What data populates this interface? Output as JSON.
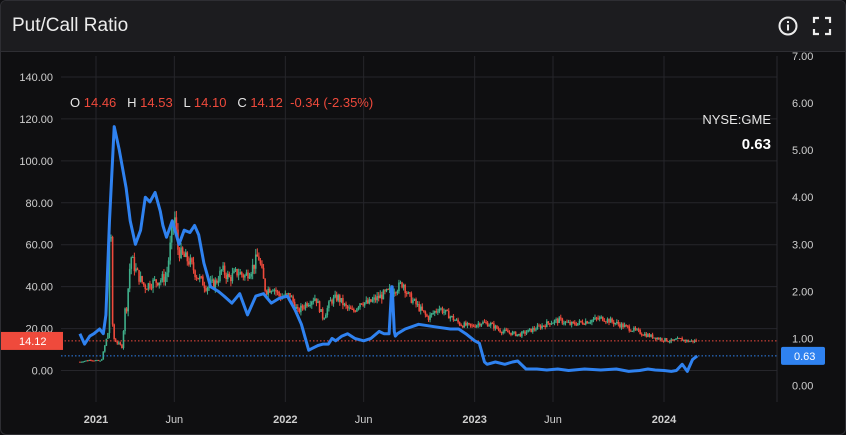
{
  "header": {
    "title": "Put/Call Ratio",
    "info_icon": "info-circle-icon",
    "expand_icon": "fullscreen-expand-icon"
  },
  "legend": {
    "o_label": "O",
    "o_value": "14.46",
    "h_label": "H",
    "h_value": "14.53",
    "l_label": "L",
    "l_value": "14.10",
    "c_label": "C",
    "c_value": "14.12",
    "change": "-0.34 (-2.35%)",
    "symbol": "NYSE:GME",
    "symbol_value": "0.63"
  },
  "colors": {
    "background": "#0f0f11",
    "grid": "#26262b",
    "up": "#3fae8a",
    "down": "#ef4a3c",
    "ratio_line": "#2f82f0",
    "price_label_bg": "#ef4a3c",
    "ratio_label_bg": "#2f82f0"
  },
  "chart_data": {
    "type": "line",
    "title": "Put/Call Ratio",
    "x_ticks": [
      "2021",
      "Jun",
      "2022",
      "Jun",
      "2023",
      "Jun",
      "2024"
    ],
    "x_tick_dates": [
      "2021-01-01",
      "2021-06-01",
      "2022-01-01",
      "2022-06-01",
      "2023-01-01",
      "2023-06-01",
      "2024-01-01"
    ],
    "left_axis": {
      "ticks": [
        "140.00",
        "120.00",
        "100.00",
        "80.00",
        "60.00",
        "40.00",
        "20.00",
        "0.00"
      ],
      "range": [
        -15,
        150
      ]
    },
    "right_axis": {
      "ticks": [
        "7.00",
        "6.00",
        "5.00",
        "4.00",
        "3.00",
        "2.00",
        "1.00",
        "0.00"
      ],
      "range": [
        -0.35,
        7
      ]
    },
    "price_last": "14.12",
    "ratio_last": "0.63",
    "grid": true,
    "series": [
      {
        "name": "NYSE:GME",
        "axis": "left",
        "kind": "candlestick",
        "dates": [
          "2020-12-01",
          "2020-12-21",
          "2021-01-11",
          "2021-01-25",
          "2021-01-28",
          "2021-02-02",
          "2021-02-05",
          "2021-02-12",
          "2021-02-22",
          "2021-02-24",
          "2021-03-01",
          "2021-03-09",
          "2021-03-15",
          "2021-03-24",
          "2021-04-05",
          "2021-04-19",
          "2021-05-03",
          "2021-05-17",
          "2021-06-01",
          "2021-06-08",
          "2021-06-15",
          "2021-06-30",
          "2021-07-15",
          "2021-08-02",
          "2021-08-20",
          "2021-09-01",
          "2021-09-15",
          "2021-10-01",
          "2021-10-15",
          "2021-11-01",
          "2021-11-10",
          "2021-11-24",
          "2021-12-08",
          "2021-12-22",
          "2022-01-10",
          "2022-01-25",
          "2022-02-10",
          "2022-02-28",
          "2022-03-15",
          "2022-03-29",
          "2022-04-12",
          "2022-04-28",
          "2022-05-12",
          "2022-05-26",
          "2022-06-09",
          "2022-06-23",
          "2022-07-08",
          "2022-07-22",
          "2022-08-08",
          "2022-08-16",
          "2022-08-25",
          "2022-09-12",
          "2022-10-03",
          "2022-10-24",
          "2022-11-14",
          "2022-12-05",
          "2022-12-27",
          "2023-01-13",
          "2023-02-01",
          "2023-02-20",
          "2023-03-10",
          "2023-03-28",
          "2023-04-17",
          "2023-05-08",
          "2023-05-26",
          "2023-06-14",
          "2023-07-05",
          "2023-07-26",
          "2023-08-14",
          "2023-09-05",
          "2023-09-26",
          "2023-10-17",
          "2023-11-07",
          "2023-11-28",
          "2023-12-12",
          "2023-12-27",
          "2024-01-16",
          "2024-02-01",
          "2024-02-16",
          "2024-03-05"
        ],
        "close": [
          4.2,
          5.1,
          4.5,
          19,
          86,
          22,
          15,
          13,
          11,
          28,
          30,
          55,
          50,
          45,
          40,
          42,
          43,
          45,
          75,
          58,
          55,
          52,
          45,
          40,
          42,
          48,
          44,
          47,
          45,
          50,
          55,
          38,
          40,
          35,
          36,
          28,
          32,
          35,
          25,
          33,
          35,
          30,
          28,
          33,
          32,
          34,
          36,
          38,
          40,
          42,
          36,
          31,
          25,
          30,
          26,
          22,
          21,
          23,
          22,
          19,
          18,
          17,
          19,
          21,
          23,
          24,
          22,
          23,
          24,
          25,
          23,
          21,
          19,
          17,
          16,
          15,
          14,
          15,
          14,
          14.12
        ]
      },
      {
        "name": "Put/Call Ratio",
        "axis": "right",
        "kind": "line",
        "dates": [
          "2020-12-01",
          "2020-12-10",
          "2020-12-20",
          "2020-12-28",
          "2021-01-08",
          "2021-01-15",
          "2021-01-20",
          "2021-01-27",
          "2021-02-05",
          "2021-02-15",
          "2021-02-28",
          "2021-03-08",
          "2021-03-18",
          "2021-03-28",
          "2021-04-06",
          "2021-04-15",
          "2021-04-25",
          "2021-05-05",
          "2021-05-10",
          "2021-05-17",
          "2021-05-28",
          "2021-06-10",
          "2021-06-20",
          "2021-07-01",
          "2021-07-10",
          "2021-07-18",
          "2021-07-28",
          "2021-08-10",
          "2021-08-25",
          "2021-09-05",
          "2021-09-20",
          "2021-10-05",
          "2021-10-20",
          "2021-11-05",
          "2021-11-20",
          "2021-12-05",
          "2021-12-20",
          "2022-01-05",
          "2022-01-20",
          "2022-02-01",
          "2022-02-15",
          "2022-02-20",
          "2022-03-05",
          "2022-03-15",
          "2022-03-25",
          "2022-04-01",
          "2022-04-08",
          "2022-04-20",
          "2022-05-01",
          "2022-05-15",
          "2022-06-01",
          "2022-06-15",
          "2022-07-01",
          "2022-07-10",
          "2022-07-20",
          "2022-07-25",
          "2022-07-26",
          "2022-07-30",
          "2022-08-01",
          "2022-08-05",
          "2022-08-20",
          "2022-09-15",
          "2022-10-15",
          "2022-11-15",
          "2022-12-01",
          "2022-12-15",
          "2023-01-01",
          "2023-01-10",
          "2023-01-20",
          "2023-01-25",
          "2023-02-10",
          "2023-02-28",
          "2023-03-15",
          "2023-03-25",
          "2023-04-10",
          "2023-05-01",
          "2023-05-20",
          "2023-06-10",
          "2023-07-01",
          "2023-08-01",
          "2023-09-01",
          "2023-10-01",
          "2023-10-25",
          "2023-11-15",
          "2023-12-01",
          "2023-12-15",
          "2024-01-01",
          "2024-01-15",
          "2024-01-25",
          "2024-02-05",
          "2024-02-15",
          "2024-02-25",
          "2024-03-05"
        ],
        "values": [
          1.1,
          0.88,
          1.05,
          1.1,
          1.2,
          1.1,
          1.5,
          3.5,
          5.5,
          5.0,
          4.2,
          3.5,
          3.0,
          3.3,
          4.0,
          3.9,
          4.1,
          3.7,
          3.4,
          3.15,
          3.5,
          3.0,
          3.3,
          3.25,
          3.4,
          3.2,
          2.6,
          2.1,
          2.0,
          1.9,
          1.75,
          1.95,
          1.5,
          1.9,
          1.95,
          1.75,
          1.85,
          1.9,
          1.6,
          1.3,
          0.75,
          0.78,
          0.85,
          0.88,
          0.88,
          1.0,
          0.95,
          1.05,
          1.1,
          1.0,
          0.95,
          1.0,
          1.15,
          1.1,
          1.1,
          2.1,
          2.1,
          1.15,
          1.05,
          1.1,
          1.2,
          1.3,
          1.25,
          1.2,
          1.2,
          1.1,
          0.95,
          0.9,
          0.5,
          0.45,
          0.5,
          0.45,
          0.5,
          0.52,
          0.35,
          0.35,
          0.33,
          0.35,
          0.32,
          0.35,
          0.33,
          0.35,
          0.3,
          0.32,
          0.35,
          0.33,
          0.32,
          0.3,
          0.32,
          0.45,
          0.3,
          0.55,
          0.63
        ]
      }
    ]
  }
}
